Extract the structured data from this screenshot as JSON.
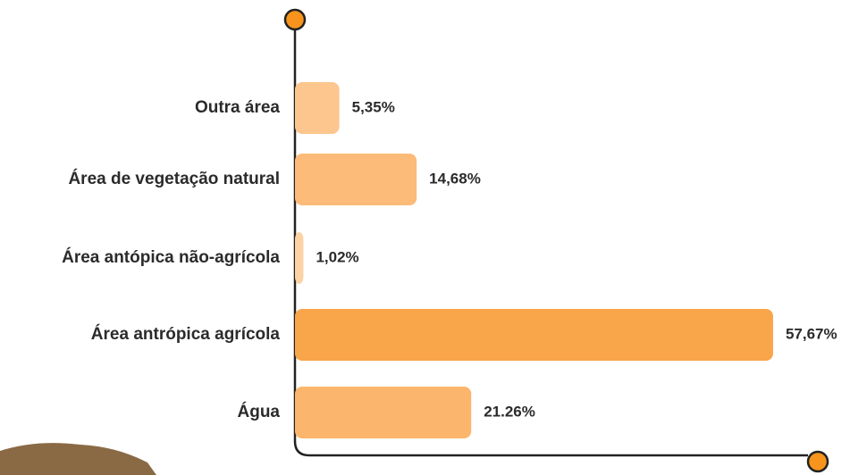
{
  "chart_data": {
    "type": "bar",
    "orientation": "horizontal",
    "categories": [
      "Outra área",
      "Área de vegetação natural",
      "Área antópica  não-agrícola",
      "Área antrópica agrícola",
      "Água"
    ],
    "values": [
      5.35,
      14.68,
      1.02,
      57.67,
      21.26
    ],
    "value_labels": [
      "5,35%",
      "14,68%",
      "1,02%",
      "57,67%",
      "21.26%"
    ],
    "colors": [
      "#fcc68e",
      "#fcbb78",
      "#fdd2a4",
      "#f9a54a",
      "#fbb56c"
    ],
    "xlim": [
      0,
      58
    ]
  }
}
